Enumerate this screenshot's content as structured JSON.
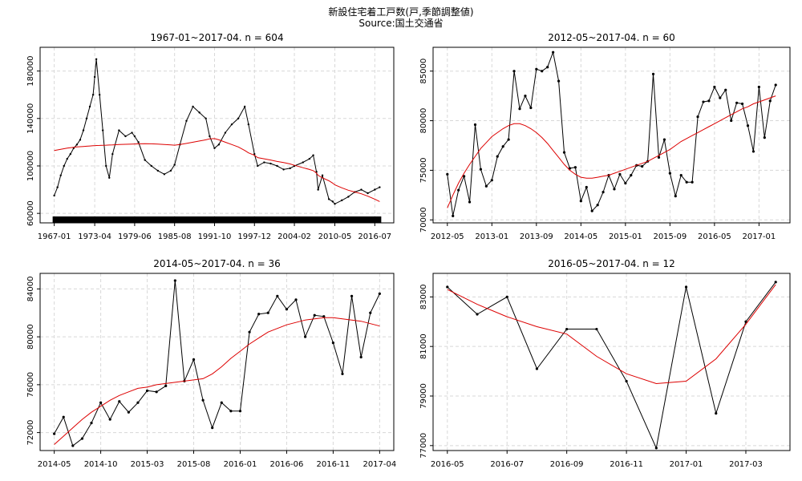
{
  "figure": {
    "title": "新設住宅着工戸数(戸,季節調整値)",
    "source": "Source:国土交通省"
  },
  "chart_data": [
    {
      "type": "line",
      "title": "1967-01~2017-04. n = 604",
      "x_tick_labels": [
        "1967-01",
        "1973-04",
        "1979-06",
        "1985-08",
        "1991-10",
        "1997-12",
        "2004-02",
        "2010-05",
        "2016-07"
      ],
      "y_tick_labels": [
        "60000",
        "100000",
        "140000",
        "180000"
      ],
      "ylim": [
        52000,
        200000
      ],
      "grid": true,
      "x": [
        "1967-01",
        "1967-07",
        "1968-01",
        "1968-07",
        "1969-01",
        "1969-07",
        "1970-01",
        "1970-07",
        "1971-01",
        "1971-07",
        "1972-01",
        "1972-07",
        "1973-01",
        "1973-04",
        "1973-07",
        "1974-01",
        "1974-07",
        "1975-01",
        "1975-07",
        "1976-01",
        "1977-01",
        "1978-01",
        "1979-01",
        "1979-06",
        "1980-01",
        "1981-01",
        "1982-01",
        "1983-01",
        "1984-01",
        "1985-01",
        "1985-08",
        "1986-06",
        "1987-06",
        "1988-06",
        "1989-06",
        "1990-06",
        "1991-01",
        "1991-10",
        "1992-06",
        "1993-06",
        "1994-06",
        "1995-06",
        "1996-06",
        "1997-01",
        "1997-12",
        "1998-06",
        "1999-06",
        "2000-06",
        "2001-06",
        "2002-06",
        "2003-06",
        "2004-02",
        "2005-06",
        "2006-06",
        "2007-01",
        "2007-07",
        "2007-10",
        "2008-06",
        "2009-06",
        "2010-01",
        "2010-05",
        "2011-06",
        "2012-06",
        "2013-06",
        "2014-06",
        "2015-06",
        "2016-07",
        "2017-04"
      ],
      "series": [
        {
          "values": [
            75000,
            82000,
            92000,
            100000,
            106000,
            110000,
            115000,
            118000,
            122000,
            130000,
            140000,
            150000,
            160000,
            175000,
            190000,
            160000,
            130000,
            100000,
            90000,
            110000,
            130000,
            125000,
            128000,
            125000,
            120000,
            105000,
            100000,
            96000,
            93000,
            96000,
            101000,
            118000,
            138000,
            150000,
            145000,
            140000,
            125000,
            115000,
            118000,
            128000,
            135000,
            140000,
            150000,
            135000,
            110000,
            100000,
            103000,
            102000,
            100000,
            97000,
            98000,
            100000,
            103000,
            106000,
            109000,
            95000,
            80000,
            92000,
            72000,
            70000,
            68000,
            71000,
            74000,
            78000,
            80000,
            77000,
            80000,
            82000
          ]
        },
        {
          "values": [
            113000,
            113500,
            114000,
            114500,
            115000,
            115400,
            115700,
            116000,
            116200,
            116400,
            116600,
            116800,
            117000,
            117100,
            117200,
            117300,
            117400,
            117500,
            117600,
            117700,
            118000,
            118200,
            118400,
            118500,
            118600,
            118700,
            118600,
            118400,
            118100,
            117700,
            117500,
            118000,
            119000,
            120000,
            121000,
            122000,
            122800,
            123000,
            122000,
            120000,
            118000,
            116000,
            113000,
            111000,
            109000,
            107000,
            106000,
            105000,
            103800,
            102800,
            101700,
            100500,
            98500,
            97000,
            96000,
            94000,
            92000,
            90000,
            87500,
            85500,
            84000,
            81500,
            79500,
            78000,
            76500,
            74500,
            72000,
            70000
          ]
        }
      ]
    },
    {
      "type": "line",
      "title": "2012-05~2017-04. n = 60",
      "x_tick_labels": [
        "2012-05",
        "2013-01",
        "2013-09",
        "2014-05",
        "2015-01",
        "2015-09",
        "2016-05",
        "2017-01"
      ],
      "y_tick_labels": [
        "70000",
        "75000",
        "80000",
        "85000"
      ],
      "ylim": [
        69700,
        87400
      ],
      "grid": true,
      "x": [
        "2012-05",
        "2012-06",
        "2012-07",
        "2012-08",
        "2012-09",
        "2012-10",
        "2012-11",
        "2012-12",
        "2013-01",
        "2013-02",
        "2013-03",
        "2013-04",
        "2013-05",
        "2013-06",
        "2013-07",
        "2013-08",
        "2013-09",
        "2013-10",
        "2013-11",
        "2013-12",
        "2014-01",
        "2014-02",
        "2014-03",
        "2014-04",
        "2014-05",
        "2014-06",
        "2014-07",
        "2014-08",
        "2014-09",
        "2014-10",
        "2014-11",
        "2014-12",
        "2015-01",
        "2015-02",
        "2015-03",
        "2015-04",
        "2015-05",
        "2015-06",
        "2015-07",
        "2015-08",
        "2015-09",
        "2015-10",
        "2015-11",
        "2015-12",
        "2016-01",
        "2016-02",
        "2016-03",
        "2016-04",
        "2016-05",
        "2016-06",
        "2016-07",
        "2016-08",
        "2016-09",
        "2016-10",
        "2016-11",
        "2016-12",
        "2017-01",
        "2017-02",
        "2017-03",
        "2017-04"
      ],
      "series": [
        {
          "values": [
            74600,
            70400,
            73000,
            74400,
            71800,
            79600,
            75100,
            73400,
            74000,
            76400,
            77400,
            78100,
            85000,
            81200,
            82500,
            81300,
            85200,
            85000,
            85400,
            86900,
            84000,
            76800,
            75200,
            75300,
            71900,
            73300,
            70900,
            71500,
            72800,
            74500,
            73100,
            74600,
            73700,
            74500,
            75500,
            75400,
            75900,
            84700,
            76300,
            78100,
            74700,
            72400,
            74500,
            73800,
            73800,
            80400,
            81900,
            82000,
            83400,
            82300,
            83100,
            80000,
            81800,
            81700,
            79500,
            76900,
            83400,
            78300,
            82000,
            83600
          ]
        },
        {
          "values": [
            71200,
            72500,
            73700,
            74700,
            75600,
            76400,
            77200,
            77800,
            78400,
            78800,
            79200,
            79500,
            79700,
            79700,
            79500,
            79200,
            78800,
            78300,
            77700,
            77000,
            76300,
            75600,
            75000,
            74600,
            74300,
            74200,
            74200,
            74300,
            74400,
            74500,
            74700,
            74900,
            75100,
            75300,
            75500,
            75700,
            75900,
            76200,
            76500,
            76800,
            77100,
            77500,
            77900,
            78200,
            78500,
            78800,
            79100,
            79400,
            79700,
            80000,
            80300,
            80600,
            80900,
            81200,
            81400,
            81700,
            81900,
            82100,
            82300,
            82500
          ]
        }
      ]
    },
    {
      "type": "line",
      "title": "2014-05~2017-04. n = 36",
      "x_tick_labels": [
        "2014-05",
        "2014-10",
        "2015-03",
        "2015-08",
        "2016-01",
        "2016-06",
        "2016-11",
        "2017-04"
      ],
      "y_tick_labels": [
        "72000",
        "76000",
        "80000",
        "84000"
      ],
      "ylim": [
        70500,
        85300
      ],
      "grid": true,
      "x": [
        "2014-05",
        "2014-06",
        "2014-07",
        "2014-08",
        "2014-09",
        "2014-10",
        "2014-11",
        "2014-12",
        "2015-01",
        "2015-02",
        "2015-03",
        "2015-04",
        "2015-05",
        "2015-06",
        "2015-07",
        "2015-08",
        "2015-09",
        "2015-10",
        "2015-11",
        "2015-12",
        "2016-01",
        "2016-02",
        "2016-03",
        "2016-04",
        "2016-05",
        "2016-06",
        "2016-07",
        "2016-08",
        "2016-09",
        "2016-10",
        "2016-11",
        "2016-12",
        "2017-01",
        "2017-02",
        "2017-03",
        "2017-04"
      ],
      "series": [
        {
          "values": [
            71900,
            73300,
            70900,
            71500,
            72800,
            74500,
            73100,
            74600,
            73700,
            74500,
            75500,
            75400,
            75900,
            84700,
            76300,
            78100,
            74700,
            72400,
            74500,
            73800,
            73800,
            80400,
            81900,
            82000,
            83400,
            82300,
            83100,
            80000,
            81800,
            81700,
            79500,
            76900,
            83400,
            78300,
            82000,
            83600
          ]
        },
        {
          "values": [
            71000,
            71700,
            72400,
            73100,
            73700,
            74200,
            74700,
            75100,
            75400,
            75700,
            75800,
            76000,
            76100,
            76200,
            76300,
            76400,
            76500,
            76900,
            77500,
            78200,
            78800,
            79400,
            79900,
            80400,
            80700,
            81000,
            81200,
            81400,
            81500,
            81600,
            81600,
            81500,
            81400,
            81300,
            81100,
            80900
          ]
        }
      ]
    },
    {
      "type": "line",
      "title": "2016-05~2017-04. n = 12",
      "x_tick_labels": [
        "2016-05",
        "2016-07",
        "2016-09",
        "2016-11",
        "2017-01",
        "2017-03"
      ],
      "y_tick_labels": [
        "77000",
        "79000",
        "81000",
        "83000"
      ],
      "ylim": [
        76800,
        83950
      ],
      "grid": true,
      "x": [
        "2016-05",
        "2016-06",
        "2016-07",
        "2016-08",
        "2016-09",
        "2016-10",
        "2016-11",
        "2016-12",
        "2017-01",
        "2017-02",
        "2017-03",
        "2017-04"
      ],
      "series": [
        {
          "values": [
            83400,
            82300,
            83000,
            80100,
            81700,
            81700,
            79600,
            76900,
            83400,
            78300,
            82000,
            83600
          ]
        },
        {
          "values": [
            83300,
            82700,
            82200,
            81800,
            81500,
            80600,
            79900,
            79500,
            79600,
            80500,
            81900,
            83500
          ]
        }
      ]
    }
  ],
  "colors": {
    "observed": "#000000",
    "trend": "#dd0000",
    "grid": "#d8d8d8",
    "frame": "#000000",
    "rug": "#000000"
  }
}
